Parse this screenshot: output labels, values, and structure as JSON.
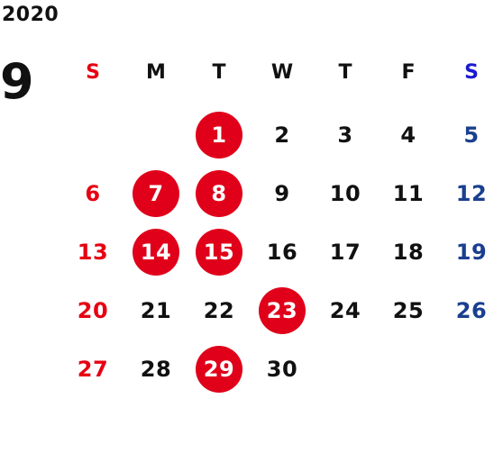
{
  "calendar": {
    "year": "2020",
    "month": "9",
    "colors": {
      "sunday": "#e60012",
      "saturday": "#1a3f8f",
      "weekday": "#111111",
      "holiday_circle": "#e0001a",
      "holiday_text": "#ffffff",
      "weekday_header_saturday": "#1a1ad0"
    },
    "weekdays": [
      "S",
      "M",
      "T",
      "W",
      "T",
      "F",
      "S"
    ],
    "start_weekday": 2,
    "days_in_month": 30,
    "highlighted_days": [
      1,
      7,
      8,
      14,
      15,
      23,
      29
    ]
  }
}
